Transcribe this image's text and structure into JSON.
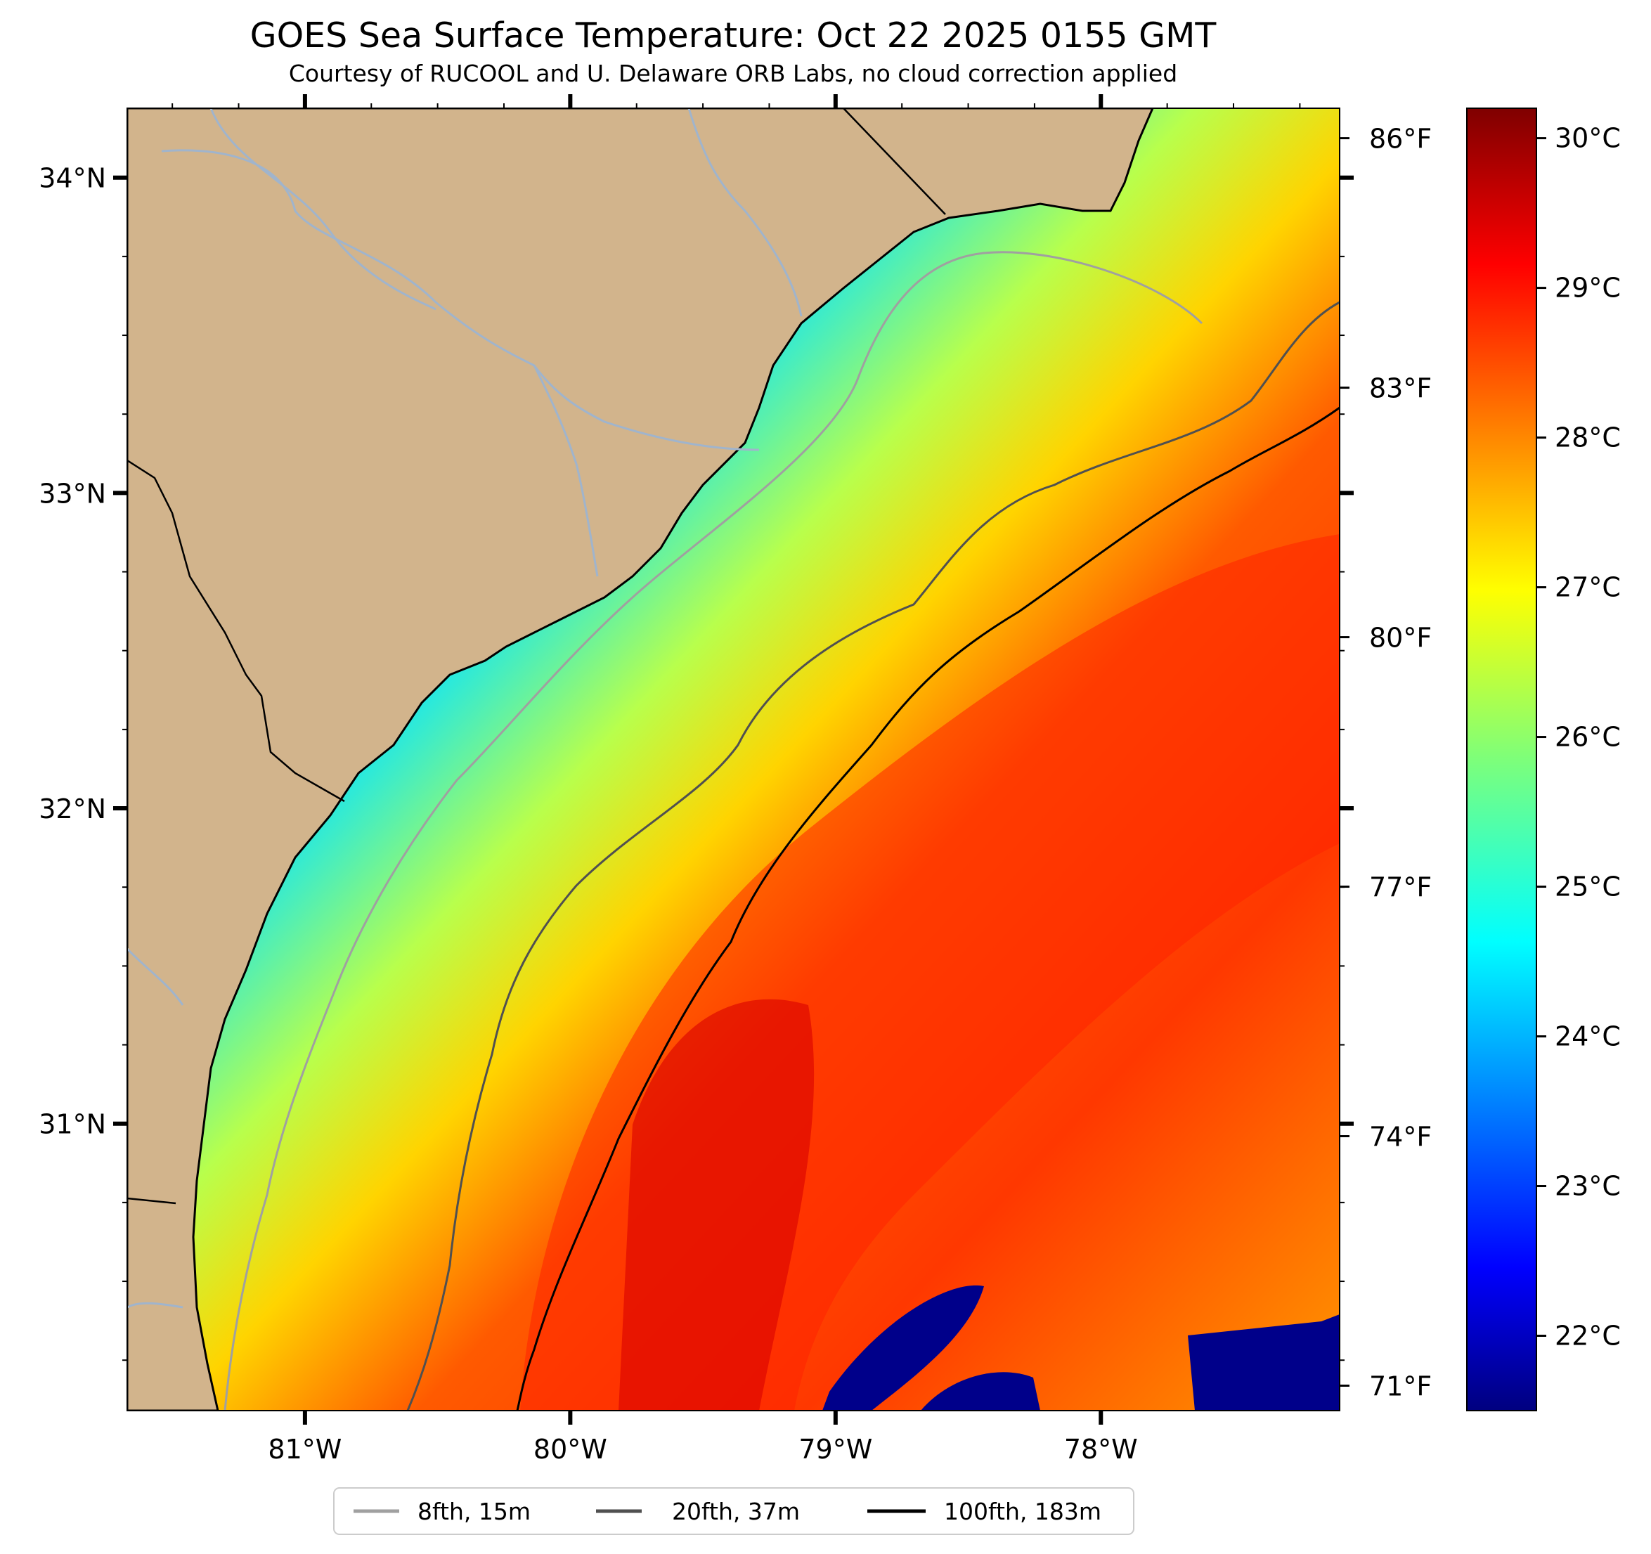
{
  "title": "GOES Sea Surface Temperature: Oct 22 2025 0155 GMT",
  "subtitle": "Courtesy of RUCOOL and U. Delaware ORB Labs, no cloud correction applied",
  "map": {
    "lon_range": [
      -81.67,
      -77.1
    ],
    "lat_range": [
      30.09,
      34.22
    ],
    "lat_ticks": [
      {
        "value": 34,
        "label": "34°N"
      },
      {
        "value": 33,
        "label": "33°N"
      },
      {
        "value": 32,
        "label": "32°N"
      },
      {
        "value": 31,
        "label": "31°N"
      }
    ],
    "lon_ticks": [
      {
        "value": -81,
        "label": "81°W"
      },
      {
        "value": -80,
        "label": "80°W"
      },
      {
        "value": -79,
        "label": "79°W"
      },
      {
        "value": -78,
        "label": "78°W"
      }
    ],
    "colors": {
      "land": "#d2b48c",
      "coast": "#000000",
      "river": "#a0b4cc",
      "no_data": "#ffffff"
    }
  },
  "fahrenheit_scale": {
    "labels": [
      "86°F",
      "83°F",
      "80°F",
      "77°F",
      "74°F",
      "71°F"
    ],
    "values": [
      86,
      83,
      80,
      77,
      74,
      71
    ]
  },
  "colorbar": {
    "range": [
      21.5,
      30.2
    ],
    "labels": [
      "30°C",
      "29°C",
      "28°C",
      "27°C",
      "26°C",
      "25°C",
      "24°C",
      "23°C",
      "22°C"
    ],
    "values": [
      30,
      29,
      28,
      27,
      26,
      25,
      24,
      23,
      22
    ],
    "colormap": "jet"
  },
  "legend": {
    "entries": [
      {
        "label": "8fth, 15m",
        "color": "#a0a0a0"
      },
      {
        "label": "20fth, 37m",
        "color": "#505050"
      },
      {
        "label": "100fth, 183m",
        "color": "#000000"
      }
    ]
  }
}
